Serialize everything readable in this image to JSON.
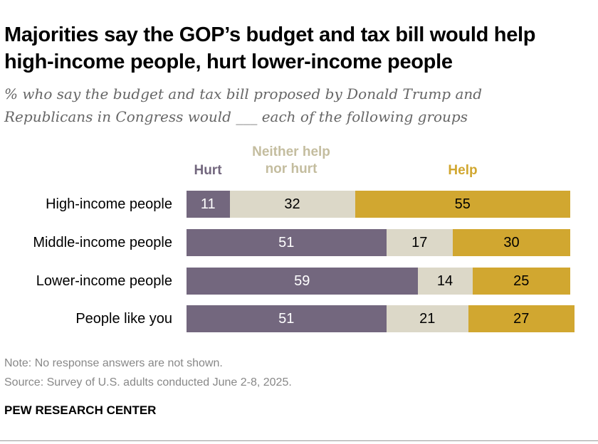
{
  "title": "Majorities say the GOP’s budget and tax bill would help high-income people, hurt lower-income people",
  "subtitle": "% who say the budget and tax bill proposed by Donald Trump and Republicans in Congress would ___ each of the following groups",
  "chart_data": {
    "type": "bar",
    "orientation": "horizontal-stacked",
    "categories": [
      "High-income people",
      "Middle-income people",
      "Lower-income people",
      "People like you"
    ],
    "series": [
      {
        "name": "Hurt",
        "values": [
          11,
          51,
          59,
          51
        ],
        "color": "#73677e",
        "text_color": "#ffffff"
      },
      {
        "name": "Neither help nor hurt",
        "values": [
          32,
          17,
          14,
          21
        ],
        "color": "#dcd8c8",
        "text_color": "#000000"
      },
      {
        "name": "Help",
        "values": [
          55,
          30,
          25,
          27
        ],
        "color": "#d1a730",
        "text_color": "#000000"
      }
    ],
    "legend_colors": [
      "#73677e",
      "#c4bd9f",
      "#d1a730"
    ],
    "legend_placement": "top",
    "grid": false
  },
  "notes": {
    "note": "Note: No response answers are not shown.",
    "source": "Source: Survey of U.S. adults conducted June 2-8, 2025."
  },
  "brand": "PEW RESEARCH CENTER"
}
